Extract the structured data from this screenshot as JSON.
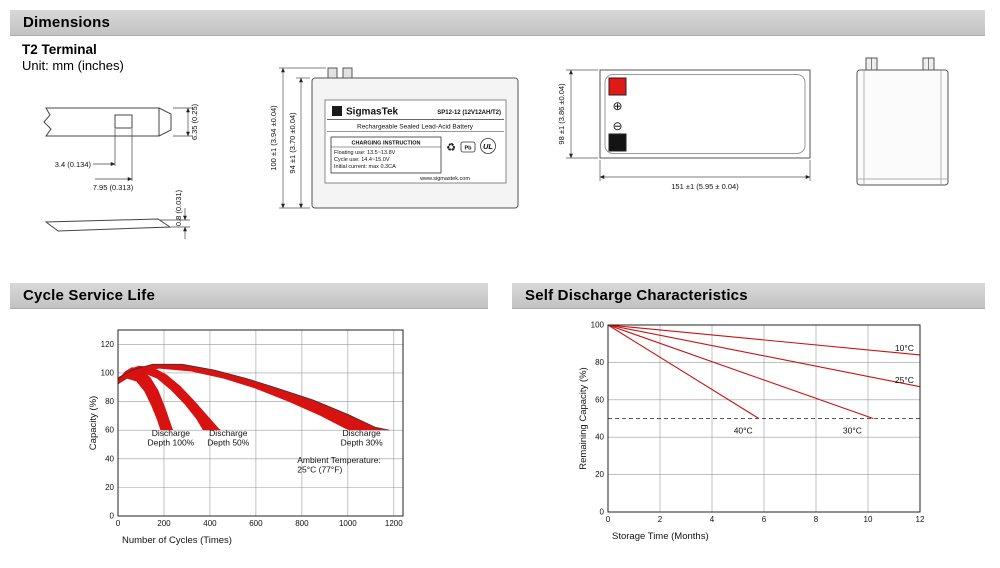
{
  "sections": {
    "dimensions": {
      "title": "Dimensions",
      "terminal_type": "T2 Terminal",
      "unit": "Unit: mm (inches)"
    },
    "cycle": {
      "title": "Cycle Service Life"
    },
    "self_discharge": {
      "title": "Self Discharge Characteristics"
    }
  },
  "drawings": {
    "terminal_view": {
      "dim_height": "6.35 (0.25)",
      "dim_hole": "3.4 (0.134)",
      "dim_width": "7.95 (0.313)",
      "dim_thickness": "0.8 (0.031)"
    },
    "front_view": {
      "dim_total_height": "100 ±1 (3.94 ±0.04)",
      "dim_case_height": "94 ±1 (3.70 ±0.04)",
      "label": {
        "brand": "SigmasTek",
        "model": "SP12-12 (12V12AH/T2)",
        "subtitle": "Rechargeable Sealed Lead-Acid Battery",
        "charging_title": "CHARGING INSTRUCTION",
        "charging_line1": "Floating use: 13.5~13.8V",
        "charging_line2": "Cycle use: 14.4~15.0V",
        "charging_line3": "Initial current: max 0.3CA",
        "website": "www.sigmastek.com",
        "pb": "Pb",
        "ul": "UL",
        "recycle_icon": "♻"
      }
    },
    "top_view": {
      "dim_width": "98 ±1 (3.86 ±0.04)",
      "dim_length": "151 ±1 (5.95 ± 0.04)",
      "positive_symbol": "⊕",
      "negative_symbol": "⊖"
    }
  },
  "chart_data": [
    {
      "id": "cycle_service_life",
      "type": "area",
      "title": "Cycle Service Life",
      "xlabel": "Number of Cycles (Times)",
      "ylabel": "Capacity (%)",
      "xlim": [
        0,
        1240
      ],
      "ylim": [
        0,
        130
      ],
      "xticks": [
        0,
        200,
        400,
        600,
        800,
        1000,
        1200
      ],
      "yticks": [
        0,
        20,
        40,
        60,
        80,
        100,
        120
      ],
      "grid": true,
      "fill_color": "#d81111",
      "bands": [
        {
          "name": "Discharge Depth 100%",
          "upper": [
            [
              0,
              95
            ],
            [
              30,
              101
            ],
            [
              60,
              104
            ],
            [
              100,
              103
            ],
            [
              140,
              97
            ],
            [
              175,
              88
            ],
            [
              205,
              76
            ],
            [
              235,
              62
            ],
            [
              240,
              60
            ]
          ],
          "lower": [
            [
              0,
              92
            ],
            [
              40,
              96
            ],
            [
              80,
              94
            ],
            [
              115,
              87
            ],
            [
              145,
              77
            ],
            [
              170,
              67
            ],
            [
              185,
              60
            ]
          ]
        },
        {
          "name": "Discharge Depth 50%",
          "upper": [
            [
              0,
              96
            ],
            [
              40,
              102
            ],
            [
              90,
              105
            ],
            [
              150,
              104
            ],
            [
              210,
              99
            ],
            [
              270,
              91
            ],
            [
              330,
              81
            ],
            [
              390,
              70
            ],
            [
              440,
              61
            ],
            [
              450,
              60
            ]
          ],
          "lower": [
            [
              0,
              93
            ],
            [
              50,
              99
            ],
            [
              110,
              100
            ],
            [
              170,
              96
            ],
            [
              230,
              88
            ],
            [
              290,
              78
            ],
            [
              340,
              68
            ],
            [
              370,
              60
            ]
          ]
        },
        {
          "name": "Discharge Depth 30%",
          "upper": [
            [
              0,
              97
            ],
            [
              60,
              102
            ],
            [
              150,
              106
            ],
            [
              280,
              106
            ],
            [
              420,
              102
            ],
            [
              560,
              96
            ],
            [
              700,
              89
            ],
            [
              850,
              81
            ],
            [
              1000,
              71
            ],
            [
              1120,
              62
            ],
            [
              1175,
              60
            ]
          ],
          "lower": [
            [
              0,
              95
            ],
            [
              80,
              101
            ],
            [
              180,
              103
            ],
            [
              320,
              101
            ],
            [
              460,
              96
            ],
            [
              600,
              89
            ],
            [
              740,
              80
            ],
            [
              880,
              70
            ],
            [
              990,
              61
            ],
            [
              1010,
              60
            ]
          ]
        }
      ],
      "envelope": [
        [
          0,
          96
        ],
        [
          60,
          102
        ],
        [
          150,
          106
        ],
        [
          280,
          106
        ],
        [
          420,
          102
        ],
        [
          560,
          96
        ],
        [
          700,
          89
        ],
        [
          850,
          81
        ],
        [
          1000,
          71
        ],
        [
          1120,
          62
        ],
        [
          1180,
          60
        ]
      ],
      "annotations": [
        {
          "lines": [
            "Discharge",
            "Depth 100%"
          ],
          "x": 230,
          "y": 56
        },
        {
          "lines": [
            "Discharge",
            "Depth 50%"
          ],
          "x": 480,
          "y": 56
        },
        {
          "lines": [
            "Discharge",
            "Depth 30%"
          ],
          "x": 1060,
          "y": 56
        },
        {
          "lines": [
            "Ambient Temperature:",
            "25°C (77°F)"
          ],
          "x": 780,
          "y": 37,
          "anchor": "start"
        }
      ]
    },
    {
      "id": "self_discharge",
      "type": "line",
      "title": "Self Discharge Characteristics",
      "xlabel": "Storage Time (Months)",
      "ylabel": "Remaining Capacity (%)",
      "xlim": [
        0,
        12
      ],
      "ylim": [
        0,
        100
      ],
      "xticks": [
        0,
        2,
        4,
        6,
        8,
        10,
        12
      ],
      "yticks": [
        0,
        20,
        40,
        60,
        80,
        100
      ],
      "grid": true,
      "line_color": "#cc1111",
      "reference_line": {
        "y": 50,
        "style": "dashed"
      },
      "series": [
        {
          "name": "10°C",
          "points": [
            [
              0,
              100
            ],
            [
              12,
              84
            ]
          ],
          "label": {
            "x": 11.4,
            "y": 86
          }
        },
        {
          "name": "25°C",
          "points": [
            [
              0,
              100
            ],
            [
              12,
              67
            ]
          ],
          "label": {
            "x": 11.4,
            "y": 69
          }
        },
        {
          "name": "30°C",
          "points": [
            [
              0,
              100
            ],
            [
              10.2,
              50
            ]
          ],
          "label": {
            "x": 9.4,
            "y": 42
          }
        },
        {
          "name": "40°C",
          "points": [
            [
              0,
              100
            ],
            [
              5.8,
              50
            ]
          ],
          "label": {
            "x": 5.2,
            "y": 42
          }
        }
      ]
    }
  ]
}
